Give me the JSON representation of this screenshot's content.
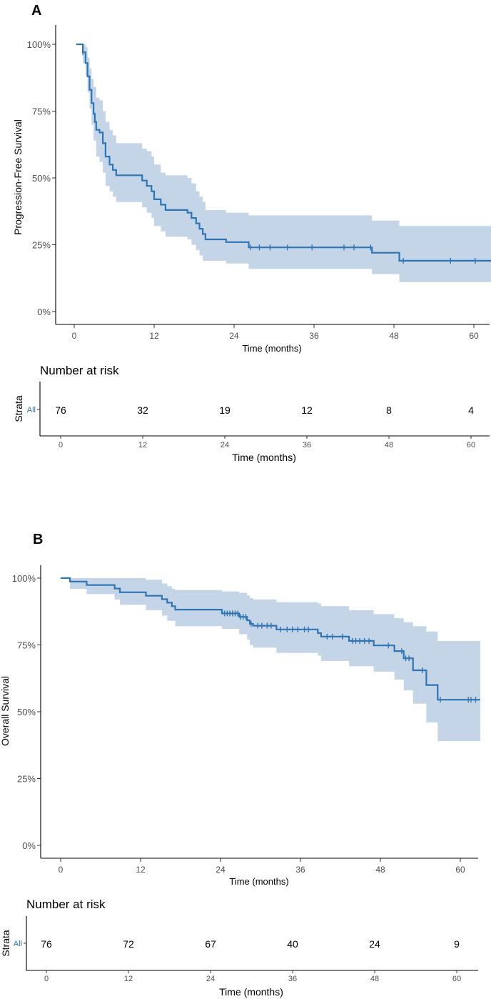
{
  "colors": {
    "line": "#2e75b6",
    "band": "#c5d5e8",
    "axis": "#000000",
    "tick_text": "#4d4d4d",
    "strata_label": "#2e75b6"
  },
  "chart_data": [
    {
      "type": "line",
      "panel": "A",
      "panel_label": "A",
      "title": "",
      "xlabel": "Time (months)",
      "ylabel": "Progression-Free Survival",
      "xlim": [
        -2.5,
        63
      ],
      "ylim": [
        -0.05,
        1.05
      ],
      "x_ticks": [
        0,
        12,
        24,
        36,
        48,
        60
      ],
      "y_ticks": [
        0,
        0.25,
        0.5,
        0.75,
        1.0
      ],
      "y_tick_labels": [
        "0%",
        "25%",
        "50%",
        "75%",
        "100%"
      ],
      "series": [
        {
          "name": "All",
          "step": [
            [
              0.3,
              1.0
            ],
            [
              1.3,
              0.97
            ],
            [
              1.7,
              0.93
            ],
            [
              2.0,
              0.88
            ],
            [
              2.3,
              0.83
            ],
            [
              2.6,
              0.78
            ],
            [
              2.9,
              0.74
            ],
            [
              3.1,
              0.71
            ],
            [
              3.3,
              0.68
            ],
            [
              3.8,
              0.67
            ],
            [
              4.3,
              0.63
            ],
            [
              4.7,
              0.58
            ],
            [
              5.3,
              0.55
            ],
            [
              5.8,
              0.53
            ],
            [
              6.3,
              0.51
            ],
            [
              10.2,
              0.49
            ],
            [
              10.9,
              0.47
            ],
            [
              11.6,
              0.45
            ],
            [
              12.0,
              0.42
            ],
            [
              13.0,
              0.4
            ],
            [
              13.7,
              0.38
            ],
            [
              17.0,
              0.37
            ],
            [
              17.6,
              0.35
            ],
            [
              18.3,
              0.33
            ],
            [
              18.8,
              0.31
            ],
            [
              19.3,
              0.29
            ],
            [
              19.7,
              0.27
            ],
            [
              22.8,
              0.26
            ],
            [
              26.2,
              0.24
            ],
            [
              44.7,
              0.22
            ],
            [
              48.8,
              0.19
            ],
            [
              63.0,
              0.19
            ]
          ],
          "ci_lower": [
            [
              0.3,
              1.0
            ],
            [
              1.3,
              0.93
            ],
            [
              1.7,
              0.88
            ],
            [
              2.0,
              0.82
            ],
            [
              2.3,
              0.76
            ],
            [
              2.6,
              0.7
            ],
            [
              2.9,
              0.64
            ],
            [
              3.3,
              0.58
            ],
            [
              3.8,
              0.56
            ],
            [
              4.3,
              0.52
            ],
            [
              4.7,
              0.47
            ],
            [
              5.3,
              0.45
            ],
            [
              5.8,
              0.43
            ],
            [
              6.3,
              0.41
            ],
            [
              10.2,
              0.39
            ],
            [
              10.9,
              0.37
            ],
            [
              11.6,
              0.35
            ],
            [
              12.0,
              0.32
            ],
            [
              13.0,
              0.3
            ],
            [
              13.7,
              0.28
            ],
            [
              17.0,
              0.27
            ],
            [
              17.6,
              0.25
            ],
            [
              18.3,
              0.23
            ],
            [
              18.8,
              0.21
            ],
            [
              19.3,
              0.19
            ],
            [
              22.8,
              0.18
            ],
            [
              26.2,
              0.16
            ],
            [
              44.7,
              0.14
            ],
            [
              48.8,
              0.11
            ],
            [
              63.0,
              0.11
            ]
          ],
          "ci_upper": [
            [
              0.3,
              1.0
            ],
            [
              1.3,
              1.0
            ],
            [
              1.7,
              0.99
            ],
            [
              2.0,
              0.95
            ],
            [
              2.3,
              0.91
            ],
            [
              2.6,
              0.87
            ],
            [
              2.9,
              0.84
            ],
            [
              3.3,
              0.8
            ],
            [
              3.8,
              0.79
            ],
            [
              4.3,
              0.75
            ],
            [
              4.7,
              0.71
            ],
            [
              5.3,
              0.68
            ],
            [
              5.8,
              0.66
            ],
            [
              6.3,
              0.63
            ],
            [
              10.2,
              0.61
            ],
            [
              10.9,
              0.6
            ],
            [
              11.6,
              0.58
            ],
            [
              12.0,
              0.55
            ],
            [
              13.0,
              0.52
            ],
            [
              13.7,
              0.51
            ],
            [
              17.0,
              0.5
            ],
            [
              17.6,
              0.48
            ],
            [
              18.3,
              0.45
            ],
            [
              18.8,
              0.43
            ],
            [
              19.3,
              0.41
            ],
            [
              19.7,
              0.38
            ],
            [
              22.8,
              0.37
            ],
            [
              26.2,
              0.36
            ],
            [
              44.7,
              0.34
            ],
            [
              48.8,
              0.32
            ],
            [
              63.0,
              0.32
            ]
          ],
          "censor_times": [
            1.3,
            26.5,
            27.8,
            29.4,
            32.0,
            35.7,
            40.5,
            42.0,
            44.5,
            49.4,
            56.5,
            60.2
          ]
        }
      ],
      "risk_table": {
        "title": "Number at risk",
        "strata_axis_label": "Strata",
        "strata": "All",
        "times": [
          0,
          12,
          24,
          36,
          48,
          60
        ],
        "counts": [
          "76",
          "32",
          "19",
          "12",
          "8",
          "4"
        ],
        "xlabel": "Time (months)"
      }
    },
    {
      "type": "line",
      "panel": "B",
      "panel_label": "B",
      "title": "",
      "xlabel": "Time (months)",
      "ylabel": "Overall Survival",
      "xlim": [
        -2.5,
        63
      ],
      "ylim": [
        -0.05,
        1.05
      ],
      "x_ticks": [
        0,
        12,
        24,
        36,
        48,
        60
      ],
      "y_ticks": [
        0,
        0.25,
        0.5,
        0.75,
        1.0
      ],
      "y_tick_labels": [
        "0%",
        "25%",
        "50%",
        "75%",
        "100%"
      ],
      "series": [
        {
          "name": "All",
          "step": [
            [
              0,
              1.0
            ],
            [
              1.4,
              0.987
            ],
            [
              3.9,
              0.974
            ],
            [
              8.1,
              0.961
            ],
            [
              8.9,
              0.947
            ],
            [
              12.8,
              0.934
            ],
            [
              15.2,
              0.921
            ],
            [
              16.0,
              0.908
            ],
            [
              16.7,
              0.895
            ],
            [
              17.2,
              0.882
            ],
            [
              24.2,
              0.868
            ],
            [
              26.8,
              0.855
            ],
            [
              28.0,
              0.842
            ],
            [
              28.4,
              0.829
            ],
            [
              28.9,
              0.822
            ],
            [
              32.4,
              0.808
            ],
            [
              38.6,
              0.794
            ],
            [
              39.1,
              0.781
            ],
            [
              43.3,
              0.765
            ],
            [
              47.0,
              0.748
            ],
            [
              50.1,
              0.727
            ],
            [
              51.5,
              0.7
            ],
            [
              52.9,
              0.655
            ],
            [
              54.9,
              0.6
            ],
            [
              56.6,
              0.545
            ],
            [
              63.0,
              0.545
            ]
          ],
          "ci_lower": [
            [
              0,
              1.0
            ],
            [
              1.4,
              0.96
            ],
            [
              3.9,
              0.94
            ],
            [
              8.1,
              0.92
            ],
            [
              8.9,
              0.9
            ],
            [
              12.8,
              0.88
            ],
            [
              15.2,
              0.86
            ],
            [
              16.0,
              0.84
            ],
            [
              17.2,
              0.82
            ],
            [
              24.2,
              0.81
            ],
            [
              26.8,
              0.79
            ],
            [
              28.0,
              0.77
            ],
            [
              28.4,
              0.75
            ],
            [
              28.9,
              0.74
            ],
            [
              32.4,
              0.72
            ],
            [
              38.6,
              0.71
            ],
            [
              39.1,
              0.69
            ],
            [
              43.3,
              0.67
            ],
            [
              47.0,
              0.65
            ],
            [
              50.1,
              0.62
            ],
            [
              51.5,
              0.58
            ],
            [
              52.9,
              0.53
            ],
            [
              54.9,
              0.46
            ],
            [
              56.6,
              0.39
            ],
            [
              63.0,
              0.39
            ]
          ],
          "ci_upper": [
            [
              0,
              1.0
            ],
            [
              1.4,
              1.0
            ],
            [
              3.9,
              1.0
            ],
            [
              8.1,
              1.0
            ],
            [
              8.9,
              1.0
            ],
            [
              12.8,
              0.994
            ],
            [
              15.2,
              0.98
            ],
            [
              16.0,
              0.97
            ],
            [
              16.7,
              0.96
            ],
            [
              17.2,
              0.955
            ],
            [
              24.2,
              0.95
            ],
            [
              26.8,
              0.945
            ],
            [
              28.0,
              0.935
            ],
            [
              28.4,
              0.925
            ],
            [
              28.9,
              0.92
            ],
            [
              32.4,
              0.91
            ],
            [
              38.6,
              0.905
            ],
            [
              39.1,
              0.895
            ],
            [
              43.3,
              0.88
            ],
            [
              47.0,
              0.865
            ],
            [
              50.1,
              0.85
            ],
            [
              51.5,
              0.835
            ],
            [
              52.9,
              0.82
            ],
            [
              54.9,
              0.8
            ],
            [
              56.6,
              0.765
            ],
            [
              63.0,
              0.765
            ]
          ],
          "censor_times": [
            24.6,
            25.0,
            25.4,
            25.8,
            26.2,
            26.6,
            27.0,
            27.4,
            27.8,
            28.6,
            29.6,
            30.2,
            31.0,
            31.6,
            33.0,
            34.0,
            34.8,
            35.6,
            36.6,
            37.2,
            40.0,
            40.8,
            42.3,
            43.8,
            44.3,
            44.9,
            45.6,
            46.3,
            49.2,
            51.2,
            51.8,
            52.3,
            54.3,
            57.0,
            61.2,
            61.6,
            62.3
          ]
        }
      ],
      "risk_table": {
        "title": "Number at risk",
        "strata_axis_label": "Strata",
        "strata": "All",
        "times": [
          0,
          12,
          24,
          36,
          48,
          60
        ],
        "counts": [
          "76",
          "72",
          "67",
          "40",
          "24",
          "9"
        ],
        "xlabel": "Time (months)"
      }
    }
  ]
}
